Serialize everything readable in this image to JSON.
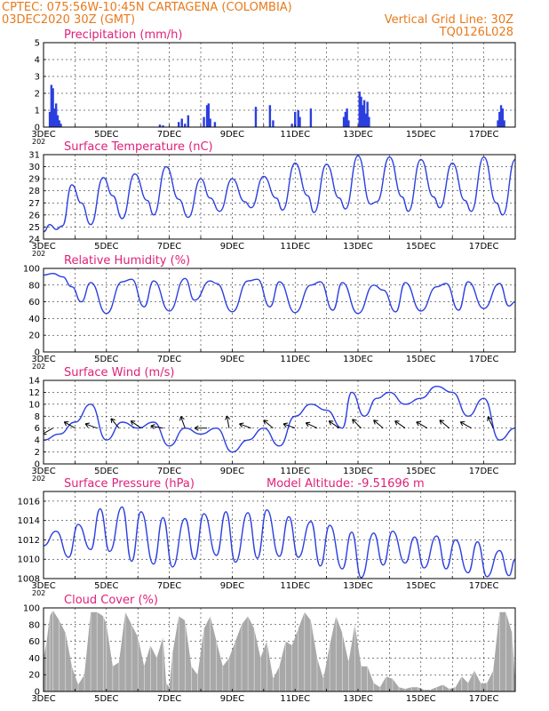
{
  "header": {
    "line1": "CPTEC:   075:56W-10:45N  CARTAGENA (COLOMBIA)",
    "line2": "03DEC2020 30Z (GMT)",
    "grid_note": "Vertical Grid Line: 30Z",
    "code": "TQ0126L028",
    "axis_cutoff_label": "202"
  },
  "colors": {
    "header": "#e87a1c",
    "title": "#e0207a",
    "line": "#2b3fe0",
    "cloud": "#a8a8a8",
    "arrow": "#000000"
  },
  "x_axis": {
    "ticks": [
      "3DEC",
      "5DEC",
      "7DEC",
      "9DEC",
      "11DEC",
      "13DEC",
      "15DEC",
      "17DEC"
    ],
    "start_day": 3,
    "end_day": 18
  },
  "chart_data": [
    {
      "type": "bar",
      "title": "Precipitation (mm/h)",
      "ylim": [
        0,
        5
      ],
      "yticks": [
        0,
        1,
        2,
        3,
        4,
        5
      ],
      "x": [
        3.2,
        3.25,
        3.3,
        3.35,
        3.4,
        3.45,
        3.5,
        3.55,
        6.7,
        6.8,
        7.3,
        7.4,
        7.5,
        7.6,
        8.1,
        8.2,
        8.25,
        8.3,
        8.45,
        9.75,
        10.2,
        10.3,
        10.9,
        11.0,
        11.1,
        11.15,
        11.5,
        12.55,
        12.6,
        12.65,
        12.7,
        13.05,
        13.1,
        13.15,
        13.2,
        13.25,
        13.3,
        13.35,
        17.45,
        17.5,
        17.55,
        17.6,
        17.65
      ],
      "values": [
        0.9,
        2.5,
        2.3,
        1.1,
        1.4,
        0.7,
        0.4,
        0.2,
        0.15,
        0.1,
        0.3,
        0.5,
        0.2,
        0.7,
        0.6,
        1.3,
        1.4,
        0.5,
        0.3,
        1.2,
        1.3,
        0.4,
        0.2,
        0.9,
        1.0,
        0.6,
        1.1,
        0.6,
        0.9,
        1.1,
        0.4,
        2.1,
        1.8,
        1.3,
        1.6,
        0.8,
        1.5,
        0.6,
        0.4,
        0.9,
        1.3,
        1.1,
        0.4
      ]
    },
    {
      "type": "line",
      "title": "Surface Temperature (nC)",
      "ylim": [
        24,
        31
      ],
      "yticks": [
        24,
        25,
        26,
        27,
        28,
        29,
        30,
        31
      ],
      "x": [
        3,
        3.2,
        3.4,
        3.6,
        3.9,
        4.2,
        4.5,
        4.9,
        5.2,
        5.5,
        5.9,
        6.3,
        6.5,
        6.9,
        7.3,
        7.6,
        8.0,
        8.3,
        8.6,
        9.0,
        9.4,
        9.6,
        10.0,
        10.4,
        10.6,
        11.0,
        11.4,
        11.6,
        12.0,
        12.4,
        12.6,
        13.0,
        13.4,
        13.6,
        14.0,
        14.4,
        14.6,
        15.0,
        15.4,
        15.6,
        16.0,
        16.4,
        16.6,
        17.0,
        17.4,
        17.6,
        18.0
      ],
      "values": [
        24.6,
        25.2,
        24.8,
        25.1,
        28.5,
        27.0,
        25.2,
        29.1,
        27.6,
        25.7,
        29.4,
        27.2,
        26.0,
        30.0,
        27.3,
        25.8,
        29.0,
        27.4,
        26.3,
        29.0,
        27.1,
        26.6,
        29.2,
        27.4,
        26.4,
        30.3,
        27.6,
        26.2,
        30.2,
        27.4,
        26.5,
        30.9,
        26.9,
        27.1,
        30.8,
        27.5,
        26.3,
        30.6,
        27.5,
        26.6,
        30.3,
        27.2,
        26.3,
        30.8,
        27.0,
        26.0,
        30.6
      ]
    },
    {
      "type": "line",
      "title": "Relative Humidity (%)",
      "ylim": [
        0,
        100
      ],
      "yticks": [
        0,
        20,
        40,
        60,
        80,
        100
      ],
      "x": [
        3,
        3.3,
        3.6,
        3.9,
        4.2,
        4.5,
        5.0,
        5.5,
        5.8,
        6.2,
        6.5,
        7.0,
        7.5,
        7.8,
        8.3,
        8.5,
        9.0,
        9.5,
        9.8,
        10.2,
        10.5,
        11.0,
        11.5,
        11.8,
        12.2,
        12.5,
        13.0,
        13.5,
        13.8,
        14.2,
        14.5,
        15.0,
        15.5,
        15.8,
        16.2,
        16.5,
        17.0,
        17.5,
        17.8,
        18.0
      ],
      "values": [
        92,
        94,
        90,
        78,
        60,
        83,
        46,
        84,
        87,
        54,
        85,
        49,
        88,
        62,
        85,
        82,
        48,
        85,
        87,
        54,
        84,
        47,
        80,
        84,
        50,
        83,
        46,
        80,
        74,
        48,
        83,
        49,
        78,
        82,
        50,
        84,
        52,
        82,
        55,
        60
      ]
    },
    {
      "type": "line",
      "title": "Surface Wind (m/s)",
      "ylim": [
        0,
        14
      ],
      "yticks": [
        0,
        2,
        4,
        6,
        8,
        10,
        12,
        14
      ],
      "x": [
        3,
        3.5,
        4.0,
        4.5,
        5.0,
        5.5,
        6.0,
        6.5,
        7.0,
        7.5,
        8.0,
        8.5,
        9.0,
        9.5,
        10.0,
        10.5,
        11.0,
        11.5,
        12.0,
        12.5,
        12.8,
        13.2,
        13.6,
        14.0,
        14.5,
        15.0,
        15.5,
        16.0,
        16.5,
        17.0,
        17.5,
        18.0
      ],
      "values": [
        4,
        5,
        7,
        10,
        4,
        7,
        6,
        7,
        3,
        6,
        5,
        6,
        2,
        4,
        6,
        3,
        8,
        10,
        9,
        6,
        12,
        8,
        11,
        12,
        10,
        11,
        13,
        12,
        8,
        11,
        4,
        6
      ],
      "barbs_x": [
        3.3,
        4.0,
        4.7,
        5.4,
        6.1,
        6.8,
        7.5,
        8.2,
        8.9,
        9.6,
        10.3,
        11.0,
        11.7,
        12.4,
        13.1,
        13.8,
        14.5,
        15.2,
        15.9,
        16.6,
        17.3
      ],
      "barbs_deg": [
        150,
        210,
        200,
        230,
        215,
        190,
        250,
        180,
        260,
        200,
        220,
        200,
        205,
        215,
        225,
        220,
        215,
        210,
        220,
        210,
        245
      ]
    },
    {
      "type": "line",
      "title": "Surface Pressure (hPa)",
      "subtitle": "Model Altitude: -9.51696 m",
      "ylim": [
        1008,
        1017
      ],
      "yticks": [
        1008,
        1010,
        1012,
        1014,
        1016
      ],
      "x": [
        3,
        3.4,
        3.8,
        4.1,
        4.5,
        4.8,
        5.1,
        5.5,
        5.8,
        6.1,
        6.5,
        6.8,
        7.1,
        7.5,
        7.8,
        8.1,
        8.5,
        8.8,
        9.1,
        9.5,
        9.8,
        10.1,
        10.5,
        10.8,
        11.1,
        11.5,
        11.8,
        12.1,
        12.5,
        12.8,
        13.1,
        13.5,
        13.8,
        14.1,
        14.5,
        14.8,
        15.1,
        15.5,
        15.8,
        16.1,
        16.5,
        16.8,
        17.1,
        17.5,
        17.8,
        18.0
      ],
      "values": [
        1011.4,
        1012.9,
        1010.2,
        1013.6,
        1011.0,
        1015.2,
        1010.8,
        1015.4,
        1009.8,
        1014.9,
        1009.5,
        1014.3,
        1009.2,
        1014.2,
        1010.0,
        1014.7,
        1010.4,
        1014.9,
        1009.7,
        1014.8,
        1010.1,
        1015.1,
        1010.3,
        1014.4,
        1010.2,
        1013.9,
        1009.3,
        1013.5,
        1009.0,
        1012.8,
        1008.1,
        1012.7,
        1009.4,
        1012.9,
        1009.6,
        1012.3,
        1009.1,
        1012.4,
        1009.0,
        1012.0,
        1008.6,
        1011.8,
        1008.2,
        1010.9,
        1008.3,
        1010.0
      ]
    },
    {
      "type": "area",
      "title": "Cloud Cover (%)",
      "ylim": [
        0,
        100
      ],
      "yticks": [
        0,
        20,
        40,
        60,
        80,
        100
      ],
      "x": [
        3,
        3.1,
        3.2,
        3.3,
        3.5,
        3.7,
        3.9,
        4.1,
        4.3,
        4.5,
        4.7,
        4.9,
        5.0,
        5.2,
        5.4,
        5.6,
        5.8,
        6.0,
        6.2,
        6.4,
        6.6,
        6.8,
        6.9,
        7.0,
        7.1,
        7.3,
        7.5,
        7.7,
        7.9,
        8.1,
        8.3,
        8.5,
        8.7,
        8.9,
        9.1,
        9.3,
        9.5,
        9.7,
        9.9,
        10.1,
        10.3,
        10.5,
        10.7,
        10.9,
        11.1,
        11.3,
        11.5,
        11.7,
        11.9,
        12.1,
        12.3,
        12.5,
        12.7,
        12.9,
        13.1,
        13.3,
        13.5,
        13.7,
        13.9,
        14.1,
        14.3,
        14.5,
        14.7,
        14.9,
        15.1,
        15.3,
        15.5,
        15.7,
        15.9,
        16.1,
        16.3,
        16.5,
        16.7,
        16.9,
        17.1,
        17.3,
        17.5,
        17.7,
        17.9,
        18.0
      ],
      "values": [
        40,
        60,
        90,
        97,
        85,
        70,
        30,
        8,
        20,
        95,
        95,
        90,
        80,
        30,
        35,
        95,
        80,
        65,
        30,
        55,
        40,
        65,
        10,
        5,
        45,
        90,
        85,
        30,
        20,
        75,
        90,
        60,
        30,
        40,
        60,
        80,
        90,
        75,
        40,
        60,
        15,
        30,
        60,
        55,
        75,
        95,
        85,
        40,
        15,
        55,
        90,
        70,
        35,
        80,
        30,
        30,
        10,
        5,
        18,
        15,
        5,
        3,
        5,
        5,
        2,
        2,
        5,
        8,
        3,
        5,
        18,
        10,
        25,
        10,
        10,
        25,
        95,
        95,
        70,
        10
      ]
    }
  ]
}
